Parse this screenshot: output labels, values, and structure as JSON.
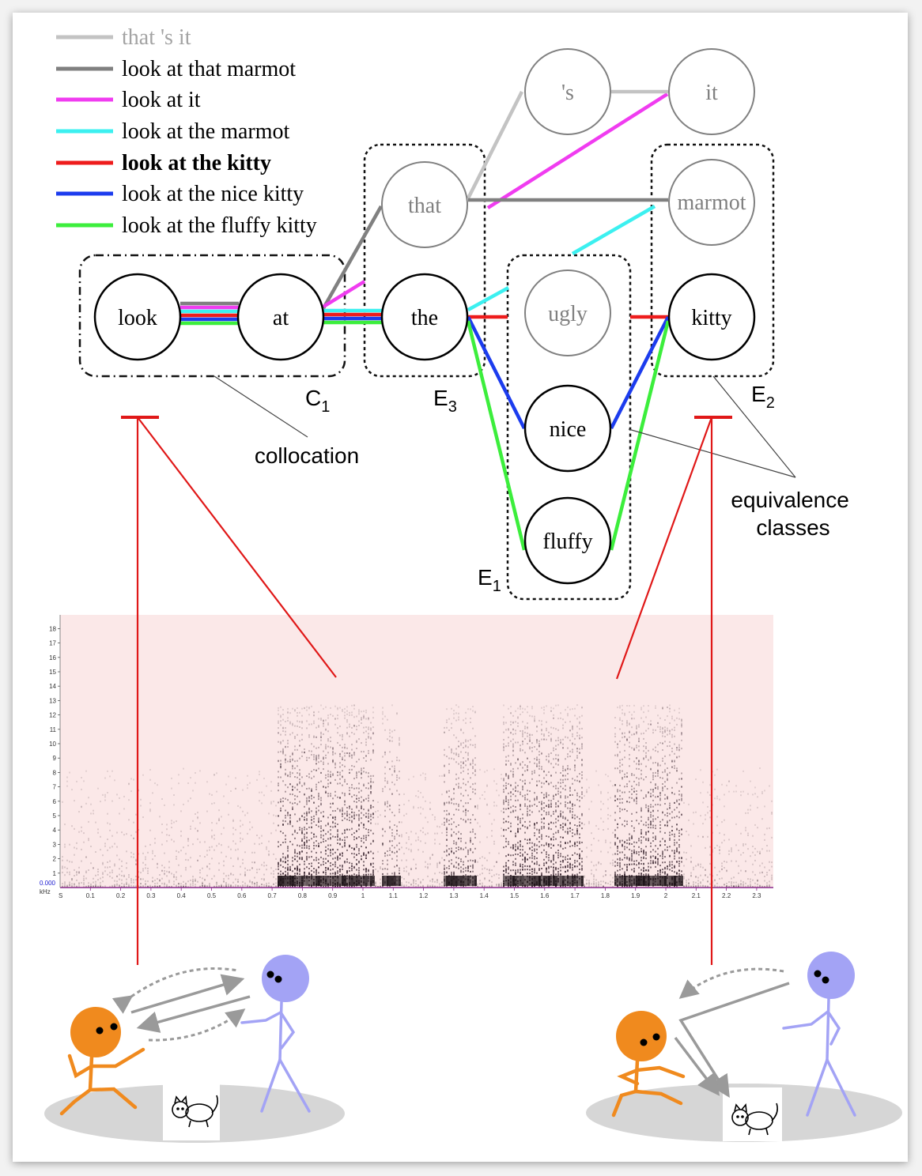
{
  "legend": [
    {
      "label": "that 's it",
      "color": "#c3c3c3",
      "bold": false,
      "text_color": "#a3a3a3"
    },
    {
      "label": "look at that marmot",
      "color": "#808080",
      "bold": false,
      "text_color": "#000000"
    },
    {
      "label": "look at it",
      "color": "#f03cf0",
      "bold": false,
      "text_color": "#000000"
    },
    {
      "label": "look at the marmot",
      "color": "#3cf0f0",
      "bold": false,
      "text_color": "#000000"
    },
    {
      "label": "look at the kitty",
      "color": "#ee1c1c",
      "bold": true,
      "text_color": "#000000"
    },
    {
      "label": "look at the nice kitty",
      "color": "#1c3cee",
      "bold": false,
      "text_color": "#000000"
    },
    {
      "label": "look at the fluffy kitty",
      "color": "#3cee3c",
      "bold": false,
      "text_color": "#000000"
    }
  ],
  "nodes": {
    "look": "look",
    "at": "at",
    "the": "the",
    "that": "that",
    "apos_s": "'s",
    "it": "it",
    "marmot": "marmot",
    "ugly": "ugly",
    "nice": "nice",
    "fluffy": "fluffy",
    "kitty": "kitty"
  },
  "groups": {
    "c1": {
      "letter": "C",
      "sub": "1"
    },
    "e1": {
      "letter": "E",
      "sub": "1"
    },
    "e2": {
      "letter": "E",
      "sub": "2"
    },
    "e3": {
      "letter": "E",
      "sub": "3"
    }
  },
  "annotations": {
    "collocation": "collocation",
    "equivalence_line1": "equivalence",
    "equivalence_line2": "classes"
  },
  "spectrogram": {
    "y_ticks": [
      "1",
      "2",
      "3",
      "4",
      "5",
      "6",
      "7",
      "8",
      "9",
      "10",
      "11",
      "12",
      "13",
      "14",
      "15",
      "16",
      "17",
      "18"
    ],
    "y_zero": "0.000",
    "y_unit": "kHz",
    "x_start": "S",
    "x_ticks": [
      "0.1",
      "0.2",
      "0.3",
      "0.4",
      "0.5",
      "0.6",
      "0.7",
      "0.8",
      "0.9",
      "1",
      "1.1",
      "1.2",
      "1.3",
      "1.4",
      "1.5",
      "1.6",
      "1.7",
      "1.8",
      "1.9",
      "2",
      "2.1",
      "2.2",
      "2.3"
    ]
  },
  "colors": {
    "pointer": "#e01818",
    "child": "#f08a1e",
    "adult": "#a3a3f5",
    "ground": "#d6d6d6",
    "spectro_bg": "#fbe8e8",
    "arrow": "#9a9a9a"
  },
  "icons": [
    "cat-icon",
    "cat-icon"
  ]
}
